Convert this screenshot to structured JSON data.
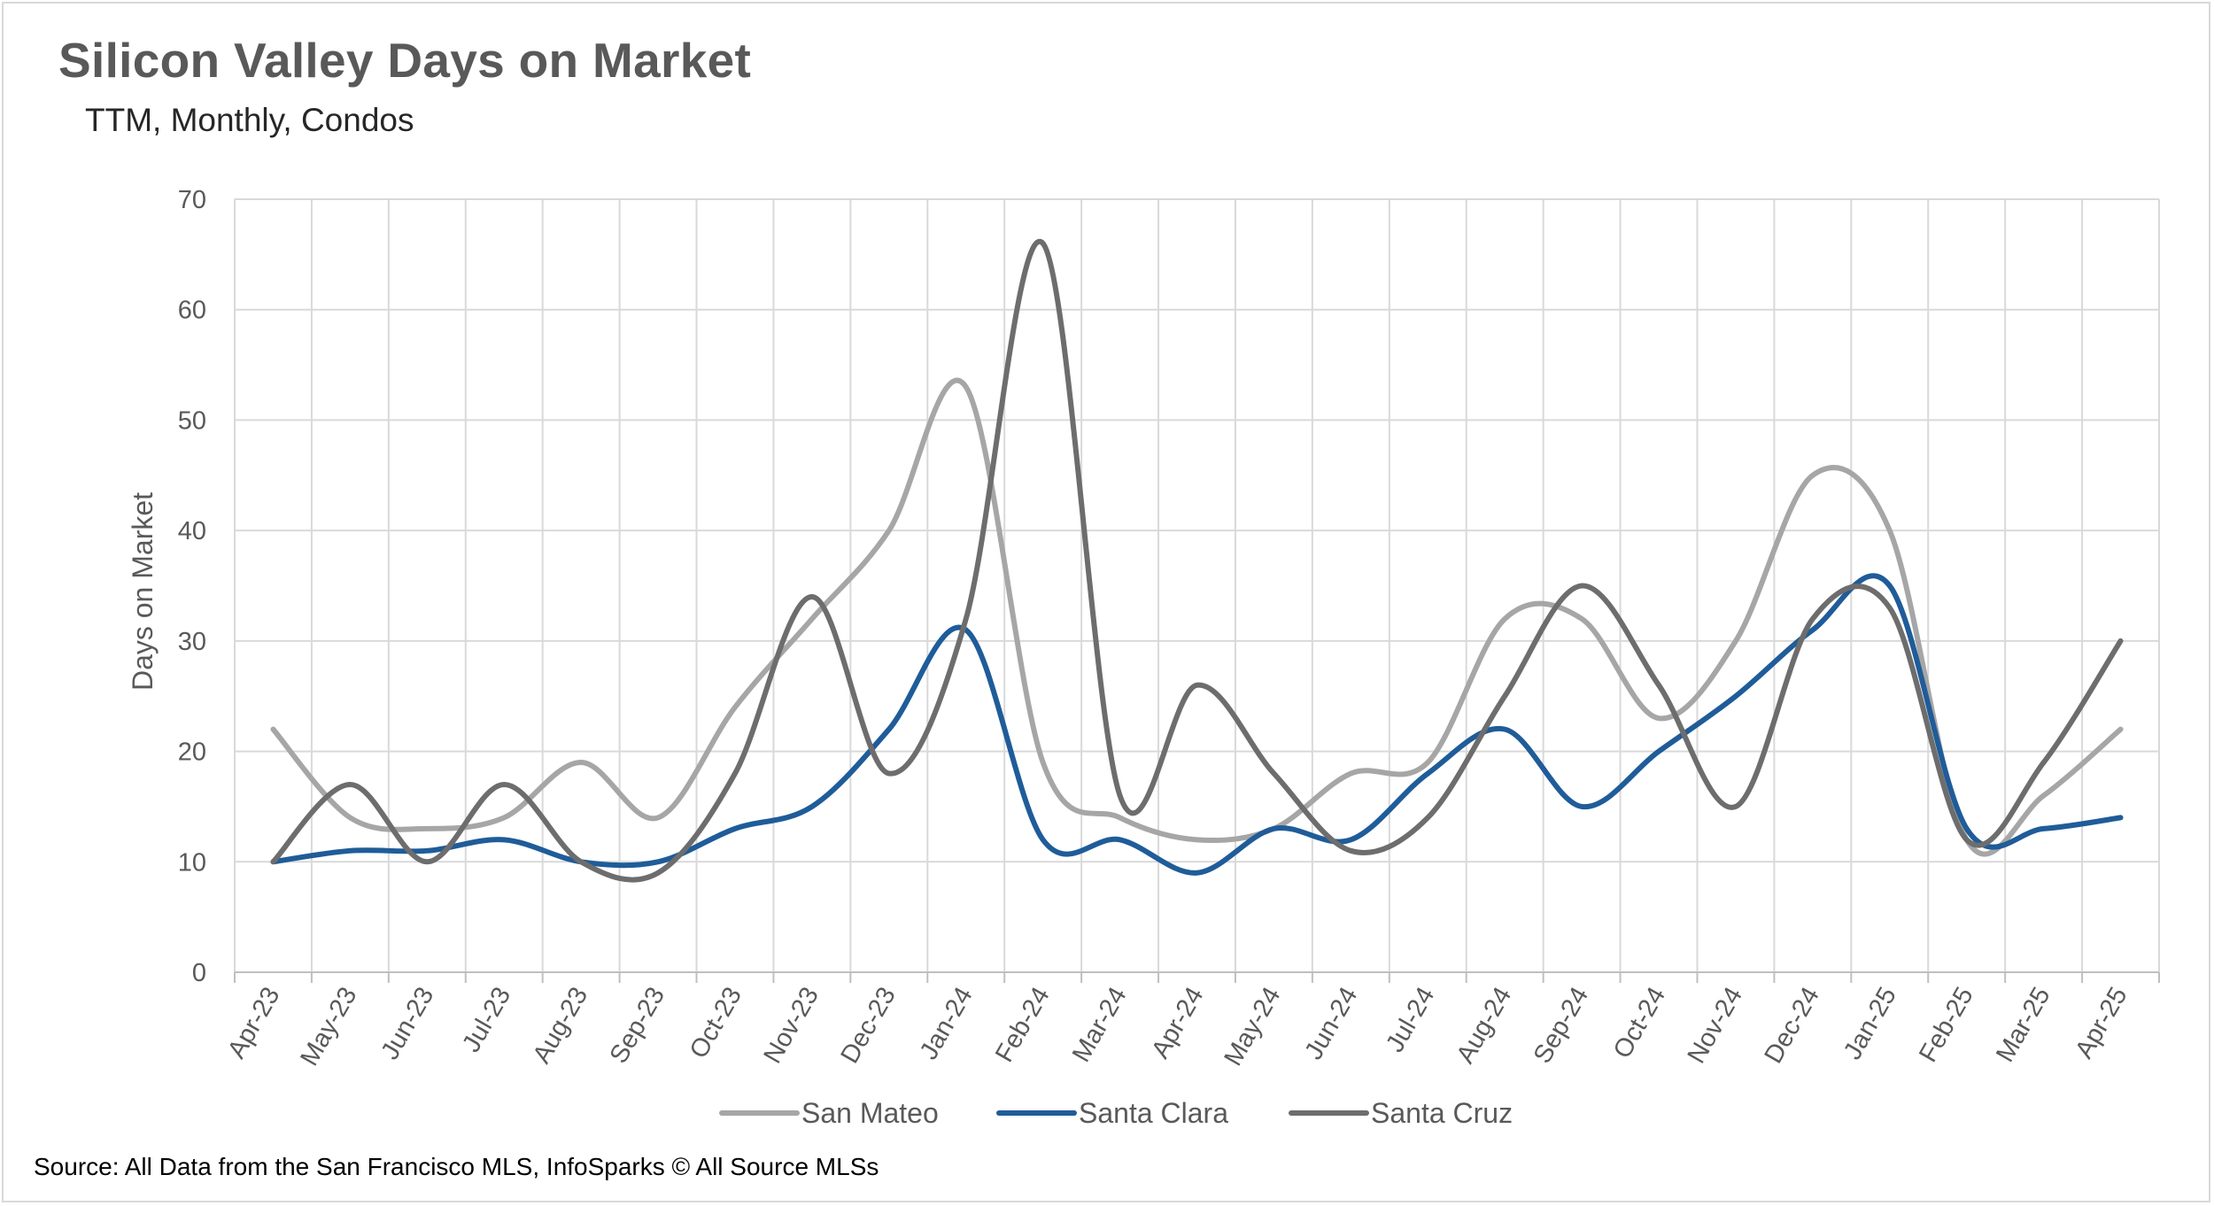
{
  "header": {
    "title": "Silicon Valley Days on Market",
    "subtitle": "TTM, Monthly, Condos"
  },
  "footer": {
    "source": "Source: All Data from the San Francisco MLS, InfoSparks © All Source MLSs"
  },
  "chart_data": {
    "type": "line",
    "title": "Silicon Valley Days on Market",
    "subtitle": "TTM, Monthly, Condos",
    "xlabel": "",
    "ylabel": "Days on Market",
    "ylim": [
      0,
      70
    ],
    "yticks": [
      0,
      10,
      20,
      30,
      40,
      50,
      60,
      70
    ],
    "grid": true,
    "smooth": true,
    "legend_position": "bottom",
    "categories": [
      "Apr-23",
      "May-23",
      "Jun-23",
      "Jul-23",
      "Aug-23",
      "Sep-23",
      "Oct-23",
      "Nov-23",
      "Dec-23",
      "Jan-24",
      "Feb-24",
      "Mar-24",
      "Apr-24",
      "May-24",
      "Jun-24",
      "Jul-24",
      "Aug-24",
      "Sep-24",
      "Oct-24",
      "Nov-24",
      "Dec-24",
      "Jan-25",
      "Feb-25",
      "Mar-25",
      "Apr-25"
    ],
    "series": [
      {
        "name": "San Mateo",
        "color": "#a6a6a6",
        "values": [
          22,
          14,
          13,
          14,
          19,
          14,
          24,
          32,
          40,
          53,
          19,
          14,
          12,
          13,
          18,
          19,
          32,
          32,
          23,
          30,
          45,
          40,
          12,
          16,
          22
        ]
      },
      {
        "name": "Santa Clara",
        "color": "#1f5c99",
        "values": [
          10,
          11,
          11,
          12,
          10,
          10,
          13,
          15,
          22,
          31,
          12,
          12,
          9,
          13,
          12,
          18,
          22,
          15,
          20,
          25,
          31,
          35,
          13,
          13,
          14
        ]
      },
      {
        "name": "Santa Cruz",
        "color": "#6d6d6d",
        "values": [
          10,
          17,
          10,
          17,
          10,
          9,
          18,
          34,
          18,
          32,
          66,
          16,
          26,
          18,
          11,
          14,
          25,
          35,
          26,
          15,
          32,
          33,
          12,
          19,
          30
        ]
      }
    ]
  }
}
